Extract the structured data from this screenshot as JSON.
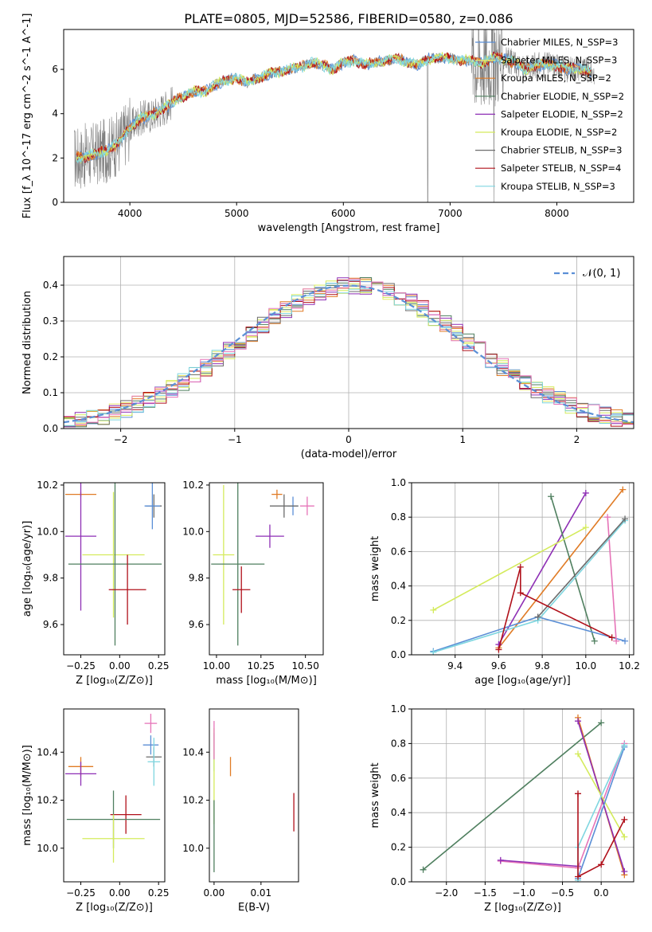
{
  "figure_title": "PLATE=0805, MJD=52586, FIBERID=0580, z=0.086",
  "colors": {
    "chabrier_miles": "#5b8fd6",
    "salpeter_miles": "#e8e86a",
    "kroupa_miles": "#e07b25",
    "chabrier_elodie": "#4f7f5f",
    "salpeter_elodie": "#8e2fb5",
    "kroupa_elodie": "#d4eb5c",
    "chabrier_stelib": "#6c6c6c",
    "salpeter_stelib": "#b0101a",
    "kroupa_stelib": "#7fd6e0",
    "pink": "#e674b8",
    "data": "#808080",
    "normal_curve": "#5b8fd6",
    "grid": "#b0b0b0"
  },
  "chart_data": [
    {
      "type": "line",
      "id": "spectrum",
      "title": "PLATE=0805, MJD=52586, FIBERID=0580, z=0.086",
      "xlabel": "wavelength [Angstrom, rest frame]",
      "ylabel": "Flux [f_λ 10^-17 erg cm^-2 s^-1 A^-1]",
      "xlim": [
        3380,
        8720
      ],
      "ylim": [
        0,
        7.8
      ],
      "xticks": [
        "4000",
        "5000",
        "6000",
        "7000",
        "8000"
      ],
      "yticks": [
        "0",
        "2",
        "4",
        "6"
      ],
      "grid": false,
      "legend_position": "top-right",
      "legend": [
        {
          "name": "Chabrier MILES, N_SSP=3",
          "color": "#5b8fd6"
        },
        {
          "name": "Salpeter MILES, N_SSP=3",
          "color": "#e8e86a"
        },
        {
          "name": "Kroupa MILES, N_SSP=2",
          "color": "#e07b25"
        },
        {
          "name": "Chabrier ELODIE, N_SSP=2",
          "color": "#4f7f5f"
        },
        {
          "name": "Salpeter ELODIE, N_SSP=2",
          "color": "#8e2fb5"
        },
        {
          "name": "Kroupa ELODIE, N_SSP=2",
          "color": "#d4eb5c"
        },
        {
          "name": "Chabrier STELIB, N_SSP=3",
          "color": "#6c6c6c"
        },
        {
          "name": "Salpeter STELIB, N_SSP=4",
          "color": "#b0101a"
        },
        {
          "name": "Kroupa STELIB, N_SSP=3",
          "color": "#7fd6e0"
        }
      ],
      "x": [
        3500,
        3600,
        3700,
        3800,
        3900,
        4000,
        4100,
        4200,
        4300,
        4400,
        4500,
        4600,
        4700,
        4800,
        4900,
        5000,
        5100,
        5200,
        5300,
        5400,
        5500,
        5600,
        5700,
        5800,
        5900,
        6000,
        6100,
        6200,
        6300,
        6400,
        6500,
        6600,
        6700,
        6800,
        6900,
        7000,
        7100,
        7200,
        7300,
        7400,
        7500,
        7600,
        7700,
        7800,
        7900,
        8000,
        8100,
        8200,
        8300
      ],
      "series": [
        {
          "name": "model",
          "values": [
            2.0,
            2.1,
            2.2,
            2.4,
            2.7,
            3.4,
            3.8,
            3.9,
            4.2,
            4.5,
            4.8,
            5.0,
            5.0,
            5.3,
            5.5,
            5.6,
            5.4,
            5.6,
            5.8,
            5.9,
            6.0,
            6.1,
            6.3,
            6.2,
            6.0,
            6.3,
            6.4,
            6.2,
            6.3,
            6.4,
            6.5,
            6.3,
            6.2,
            6.5,
            6.5,
            6.5,
            6.4,
            6.4,
            6.3,
            6.5,
            6.5,
            6.3,
            6.0,
            6.2,
            6.2,
            6.2,
            6.0,
            6.1,
            5.9
          ]
        }
      ]
    },
    {
      "type": "line",
      "id": "residuals",
      "xlabel": "(data-model)/error",
      "ylabel": "Normed distribution",
      "xlim": [
        -2.5,
        2.5
      ],
      "ylim": [
        0,
        0.48
      ],
      "xticks": [
        "−2",
        "−1",
        "0",
        "1",
        "2"
      ],
      "yticks": [
        "0.0",
        "0.1",
        "0.2",
        "0.3",
        "0.4"
      ],
      "grid": true,
      "legend_position": "top-right",
      "legend": [
        {
          "name": "𝒩(0, 1)",
          "color": "#5b8fd6"
        }
      ]
    },
    {
      "type": "scatter",
      "id": "age_vs_Z",
      "xlabel": "Z [log₁₀(Z/Z⊙)]",
      "ylabel": "age  [log₁₀(age/yr)]",
      "xlim": [
        -0.36,
        0.29
      ],
      "ylim": [
        9.47,
        10.21
      ],
      "xticks": [
        "−0.25",
        "0.00",
        "0.25"
      ],
      "yticks": [
        "9.6",
        "9.8",
        "10.0",
        "10.2"
      ],
      "grid": false,
      "points": [
        {
          "x": -0.25,
          "y": 10.16,
          "xerr": 0.1,
          "yerr": 0.01,
          "color": "#e07b25"
        },
        {
          "x": 0.22,
          "y": 10.11,
          "xerr": 0.05,
          "yerr": 0.05,
          "color": "#6c6c6c"
        },
        {
          "x": 0.21,
          "y": 10.11,
          "xerr": 0.05,
          "yerr": 0.1,
          "color": "#5b8fd6"
        },
        {
          "x": -0.25,
          "y": 9.98,
          "xerr": 0.1,
          "yerr": 0.32,
          "color": "#8e2fb5"
        },
        {
          "x": -0.04,
          "y": 9.9,
          "xerr": 0.2,
          "yerr": 0.27,
          "color": "#d4eb5c"
        },
        {
          "x": -0.03,
          "y": 9.86,
          "xerr": 0.3,
          "yerr": 0.35,
          "color": "#4f7f5f"
        },
        {
          "x": 0.05,
          "y": 9.75,
          "xerr": 0.12,
          "yerr": 0.15,
          "color": "#b0101a"
        }
      ]
    },
    {
      "type": "scatter",
      "id": "age_vs_mass",
      "xlabel": "mass [log₁₀(M/M⊙)]",
      "ylabel": "",
      "xlim": [
        9.96,
        10.6
      ],
      "ylim": [
        9.47,
        10.21
      ],
      "xticks": [
        "10.00",
        "10.25",
        "10.50"
      ],
      "yticks": [
        "9.6",
        "9.8",
        "10.0",
        "10.2"
      ],
      "grid": false,
      "points": [
        {
          "x": 10.34,
          "y": 10.16,
          "xerr": 0.03,
          "yerr": 0.02,
          "color": "#e07b25"
        },
        {
          "x": 10.43,
          "y": 10.11,
          "xerr": 0.03,
          "yerr": 0.04,
          "color": "#5b8fd6"
        },
        {
          "x": 10.38,
          "y": 10.11,
          "xerr": 0.08,
          "yerr": 0.05,
          "color": "#6c6c6c"
        },
        {
          "x": 10.51,
          "y": 10.11,
          "xerr": 0.04,
          "yerr": 0.04,
          "color": "#e674b8"
        },
        {
          "x": 10.3,
          "y": 9.98,
          "xerr": 0.08,
          "yerr": 0.05,
          "color": "#8e2fb5"
        },
        {
          "x": 10.04,
          "y": 9.9,
          "xerr": 0.06,
          "yerr": 0.3,
          "color": "#d4eb5c"
        },
        {
          "x": 10.12,
          "y": 9.86,
          "xerr": 0.15,
          "yerr": 0.35,
          "color": "#4f7f5f"
        },
        {
          "x": 10.14,
          "y": 9.75,
          "xerr": 0.05,
          "yerr": 0.1,
          "color": "#b0101a"
        }
      ]
    },
    {
      "type": "line",
      "id": "weight_vs_age",
      "xlabel": "age  [log₁₀(age/yr)]",
      "ylabel": "mass weight",
      "xlim": [
        9.2,
        10.22
      ],
      "ylim": [
        0,
        1.0
      ],
      "xticks": [
        "9.4",
        "9.6",
        "9.8",
        "10.0",
        "10.2"
      ],
      "yticks": [
        "0.0",
        "0.2",
        "0.4",
        "0.6",
        "0.8",
        "1.0"
      ],
      "grid": true,
      "series": [
        {
          "name": "",
          "color": "#e07b25",
          "points": [
            [
              9.6,
              0.04
            ],
            [
              10.17,
              0.96
            ]
          ]
        },
        {
          "name": "",
          "color": "#8e2fb5",
          "points": [
            [
              9.6,
              0.06
            ],
            [
              10.0,
              0.94
            ]
          ]
        },
        {
          "name": "",
          "color": "#4f7f5f",
          "points": [
            [
              9.84,
              0.92
            ],
            [
              10.04,
              0.08
            ]
          ]
        },
        {
          "name": "",
          "color": "#d4eb5c",
          "points": [
            [
              9.3,
              0.26
            ],
            [
              10.0,
              0.74
            ]
          ]
        },
        {
          "name": "",
          "color": "#5b8fd6",
          "points": [
            [
              9.3,
              0.02
            ],
            [
              9.78,
              0.22
            ],
            [
              10.18,
              0.08
            ]
          ]
        },
        {
          "name": "",
          "color": "#e674b8",
          "points": [
            [
              10.1,
              0.8
            ],
            [
              10.14,
              0.08
            ]
          ]
        },
        {
          "name": "",
          "color": "#7fd6e0",
          "points": [
            [
              9.3,
              0.015
            ],
            [
              9.78,
              0.2
            ],
            [
              10.18,
              0.78
            ]
          ]
        },
        {
          "name": "",
          "color": "#6c6c6c",
          "points": [
            [
              9.78,
              0.22
            ],
            [
              10.18,
              0.79
            ]
          ]
        },
        {
          "name": "",
          "color": "#b0101a",
          "points": [
            [
              9.6,
              0.03
            ],
            [
              9.7,
              0.51
            ],
            [
              9.7,
              0.36
            ],
            [
              10.12,
              0.1
            ]
          ]
        }
      ]
    },
    {
      "type": "scatter",
      "id": "mass_vs_Z",
      "xlabel": "Z [log₁₀(Z/Z⊙)]",
      "ylabel": "mass [log₁₀(M/M⊙)]",
      "xlim": [
        -0.36,
        0.29
      ],
      "ylim": [
        9.86,
        10.58
      ],
      "xticks": [
        "−0.25",
        "0.00",
        "0.25"
      ],
      "yticks": [
        "10.0",
        "10.2",
        "10.4"
      ],
      "grid": false,
      "points": [
        {
          "x": 0.2,
          "y": 10.52,
          "xerr": 0.04,
          "yerr": 0.04,
          "color": "#e674b8"
        },
        {
          "x": 0.2,
          "y": 10.43,
          "xerr": 0.05,
          "yerr": 0.04,
          "color": "#5b8fd6"
        },
        {
          "x": 0.22,
          "y": 10.38,
          "xerr": 0.05,
          "yerr": 0.04,
          "color": "#6c6c6c"
        },
        {
          "x": 0.22,
          "y": 10.36,
          "xerr": 0.04,
          "yerr": 0.1,
          "color": "#7fd6e0"
        },
        {
          "x": -0.25,
          "y": 10.34,
          "xerr": 0.08,
          "yerr": 0.04,
          "color": "#e07b25"
        },
        {
          "x": -0.25,
          "y": 10.31,
          "xerr": 0.1,
          "yerr": 0.05,
          "color": "#8e2fb5"
        },
        {
          "x": 0.04,
          "y": 10.14,
          "xerr": 0.1,
          "yerr": 0.08,
          "color": "#b0101a"
        },
        {
          "x": -0.04,
          "y": 10.12,
          "xerr": 0.3,
          "yerr": 0.12,
          "color": "#4f7f5f"
        },
        {
          "x": -0.04,
          "y": 10.04,
          "xerr": 0.2,
          "yerr": 0.1,
          "color": "#d4eb5c"
        }
      ]
    },
    {
      "type": "scatter",
      "id": "mass_vs_ebv",
      "xlabel": "E(B-V)",
      "ylabel": "",
      "xlim": [
        -0.001,
        0.018
      ],
      "ylim": [
        9.86,
        10.58
      ],
      "xticks": [
        "0.00",
        "0.01"
      ],
      "yticks": [
        "10.0",
        "10.2",
        "10.4"
      ],
      "grid": false,
      "points": [
        {
          "x": 0.0,
          "y": 10.4,
          "xerr": 0,
          "yerr": 0.08,
          "color": "#7fd6e0"
        },
        {
          "x": 0.0,
          "y": 10.3,
          "xerr": 0,
          "yerr": 0.2,
          "color": "#d4eb5c"
        },
        {
          "x": 0.0,
          "y": 10.05,
          "xerr": 0,
          "yerr": 0.15,
          "color": "#4f7f5f"
        },
        {
          "x": 0.0,
          "y": 10.45,
          "xerr": 0,
          "yerr": 0.08,
          "color": "#e674b8"
        },
        {
          "x": 0.0035,
          "y": 10.34,
          "xerr": 0,
          "yerr": 0.04,
          "color": "#e07b25"
        },
        {
          "x": 0.017,
          "y": 10.15,
          "xerr": 0,
          "yerr": 0.08,
          "color": "#b0101a"
        }
      ]
    },
    {
      "type": "line",
      "id": "weight_vs_Z",
      "xlabel": "Z [log₁₀(Z/Z⊙)]",
      "ylabel": "mass weight",
      "xlim": [
        -2.45,
        0.42
      ],
      "ylim": [
        0,
        1.0
      ],
      "xticks": [
        "−2.0",
        "−1.5",
        "−1.0",
        "−0.5",
        "0.0"
      ],
      "yticks": [
        "0.0",
        "0.2",
        "0.4",
        "0.6",
        "0.8",
        "1.0"
      ],
      "grid": true,
      "series": [
        {
          "name": "",
          "color": "#4f7f5f",
          "points": [
            [
              -2.3,
              0.07
            ],
            [
              0.0,
              0.92
            ]
          ]
        },
        {
          "name": "",
          "color": "#e674b8",
          "points": [
            [
              -1.3,
              0.12
            ],
            [
              -0.3,
              0.08
            ],
            [
              0.3,
              0.8
            ]
          ]
        },
        {
          "name": "",
          "color": "#8e2fb5",
          "points": [
            [
              -1.3,
              0.125
            ],
            [
              -0.3,
              0.09
            ]
          ]
        },
        {
          "name": "",
          "color": "#e07b25",
          "points": [
            [
              -0.3,
              0.95
            ],
            [
              0.3,
              0.04
            ]
          ]
        },
        {
          "name": "",
          "color": "#8e2fb5",
          "points": [
            [
              -0.3,
              0.93
            ],
            [
              0.3,
              0.06
            ]
          ]
        },
        {
          "name": "",
          "color": "#d4eb5c",
          "points": [
            [
              -0.3,
              0.74
            ],
            [
              0.3,
              0.26
            ]
          ]
        },
        {
          "name": "",
          "color": "#5b8fd6",
          "points": [
            [
              -0.3,
              0.02
            ],
            [
              0.3,
              0.78
            ]
          ]
        },
        {
          "name": "",
          "color": "#7fd6e0",
          "points": [
            [
              -0.3,
              0.01
            ],
            [
              -0.3,
              0.2
            ],
            [
              0.3,
              0.79
            ]
          ]
        },
        {
          "name": "",
          "color": "#b0101a",
          "points": [
            [
              -0.3,
              0.51
            ],
            [
              -0.3,
              0.03
            ],
            [
              0.0,
              0.1
            ],
            [
              0.3,
              0.36
            ]
          ]
        }
      ]
    }
  ]
}
